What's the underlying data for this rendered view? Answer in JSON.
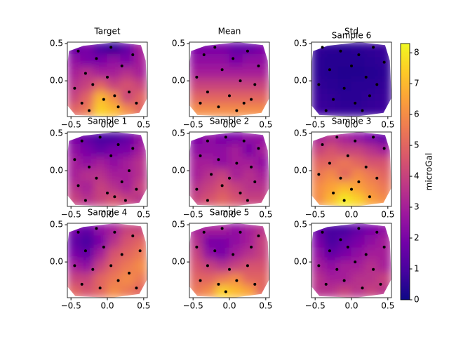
{
  "chart_data": {
    "type": "contour",
    "colormap": "plasma",
    "xlim": [
      -0.55,
      0.55
    ],
    "ylim": [
      -0.48,
      0.52
    ],
    "xticks": [
      {
        "value": -0.5,
        "label": "−0.5"
      },
      {
        "value": 0,
        "label": "0.0"
      },
      0.5
    ],
    "yticks": [
      {
        "value": 0,
        "label": "0.0"
      },
      0.5
    ],
    "panels": [
      {
        "titles": [
          "Target"
        ],
        "z": [
          [
            1.5,
            2,
            1,
            0.5,
            1.5,
            3
          ],
          [
            2.5,
            2,
            2,
            2.5,
            2,
            3
          ],
          [
            3,
            3.5,
            3,
            3,
            3.5,
            3
          ],
          [
            3.5,
            4,
            5,
            4,
            4.5,
            4
          ],
          [
            4,
            5,
            7,
            6,
            4,
            5
          ],
          [
            5,
            5.5,
            7.5,
            7,
            6,
            5
          ]
        ],
        "x": [
          -0.4,
          -0.3,
          -0.15,
          0.05,
          0.2,
          0.35,
          -0.45,
          -0.2,
          0.0,
          0.3,
          -0.35,
          -0.05,
          0.15,
          0.4,
          -0.25,
          0.1
        ],
        "y": [
          0.4,
          0.1,
          0.3,
          0.45,
          0.2,
          0.35,
          -0.1,
          -0.05,
          0.05,
          -0.15,
          -0.3,
          -0.25,
          -0.35,
          -0.3,
          -0.4,
          -0.2
        ]
      },
      {
        "titles": [
          "Mean"
        ],
        "z": [
          [
            2,
            2,
            2,
            1.5,
            1.5,
            2
          ],
          [
            2.5,
            2.5,
            2.5,
            2,
            2.5,
            2.5
          ],
          [
            3,
            3,
            3,
            3,
            3,
            3
          ],
          [
            4,
            4,
            4,
            4,
            4,
            4
          ],
          [
            5,
            5,
            5,
            5,
            5,
            5
          ],
          [
            6,
            6,
            6,
            6,
            6,
            6
          ]
        ],
        "x": [
          -0.35,
          -0.2,
          0.05,
          0.25,
          0.4,
          -0.45,
          -0.1,
          0.15,
          0.35,
          -0.3,
          0.0,
          0.2,
          -0.15,
          0.3,
          -0.4,
          0.1
        ],
        "y": [
          0.35,
          0.45,
          0.3,
          0.4,
          0.2,
          0.05,
          0.15,
          0.0,
          -0.05,
          -0.15,
          -0.2,
          -0.3,
          -0.35,
          -0.25,
          -0.3,
          -0.4
        ]
      },
      {
        "titles": [
          "Std",
          "Sample 6"
        ],
        "z": [
          [
            0.6,
            0.5,
            0.4,
            0.5,
            0.6,
            0.7
          ],
          [
            0.5,
            0.4,
            0.4,
            0.4,
            0.5,
            0.6
          ],
          [
            0.5,
            0.4,
            0.3,
            0.3,
            0.4,
            0.5
          ],
          [
            0.6,
            0.5,
            0.4,
            0.5,
            0.5,
            0.6
          ],
          [
            0.7,
            0.6,
            0.5,
            0.5,
            0.6,
            0.7
          ],
          [
            0.8,
            0.7,
            0.6,
            0.6,
            0.7,
            0.8
          ]
        ],
        "x": [
          -0.4,
          -0.15,
          0.1,
          0.3,
          0.45,
          -0.3,
          0.0,
          0.2,
          -0.45,
          -0.1,
          0.35,
          -0.25,
          0.05,
          0.25,
          -0.35,
          0.15
        ],
        "y": [
          0.45,
          0.4,
          0.35,
          0.45,
          0.25,
          0.15,
          0.2,
          0.05,
          -0.05,
          -0.1,
          -0.05,
          -0.25,
          -0.3,
          -0.2,
          -0.4,
          -0.4
        ]
      },
      {
        "titles": [
          "Sample 1"
        ],
        "z": [
          [
            2,
            1.5,
            1,
            1,
            1.5,
            2.5
          ],
          [
            2.5,
            2,
            1.5,
            2,
            2,
            3
          ],
          [
            3,
            2.5,
            3,
            2.5,
            3,
            3.5
          ],
          [
            3,
            3.5,
            3.5,
            3,
            3,
            3.5
          ],
          [
            3.5,
            3,
            4,
            3.5,
            3,
            4
          ],
          [
            4,
            3.5,
            4,
            4.5,
            4,
            3.5
          ]
        ],
        "x": [
          -0.35,
          -0.1,
          0.15,
          0.35,
          -0.45,
          -0.25,
          0.05,
          0.3,
          -0.15,
          0.2,
          -0.4,
          0.0,
          0.4,
          -0.3,
          0.1,
          0.25
        ],
        "y": [
          0.4,
          0.45,
          0.35,
          0.3,
          0.15,
          0.05,
          0.2,
          0.0,
          -0.1,
          -0.15,
          -0.2,
          -0.3,
          -0.25,
          -0.4,
          -0.35,
          -0.4
        ]
      },
      {
        "titles": [
          "Sample 2"
        ],
        "z": [
          [
            2,
            2.5,
            2,
            2,
            2.5,
            2.5
          ],
          [
            2.5,
            2.5,
            2.5,
            3,
            2,
            3
          ],
          [
            3,
            3,
            2.5,
            3,
            3,
            2.5
          ],
          [
            3,
            3.5,
            4,
            3,
            3.5,
            3
          ],
          [
            3.5,
            4,
            4.5,
            4,
            3.5,
            3.5
          ],
          [
            4,
            4.5,
            5,
            4.5,
            4,
            4
          ]
        ],
        "x": [
          -0.3,
          -0.05,
          0.2,
          0.4,
          -0.4,
          -0.15,
          0.1,
          0.3,
          -0.25,
          0.0,
          0.35,
          -0.45,
          -0.1,
          0.15,
          -0.3,
          0.25
        ],
        "y": [
          0.4,
          0.45,
          0.4,
          0.3,
          0.2,
          0.15,
          0.1,
          0.05,
          -0.05,
          -0.1,
          -0.15,
          -0.25,
          -0.2,
          -0.3,
          -0.4,
          -0.4
        ]
      },
      {
        "titles": [
          "Sample 3"
        ],
        "z": [
          [
            3,
            3.5,
            3,
            2.5,
            2,
            1.5
          ],
          [
            4,
            4.5,
            4,
            4,
            3.5,
            3
          ],
          [
            5,
            5,
            5.5,
            5,
            4.5,
            4.5
          ],
          [
            5.5,
            6,
            5,
            6,
            5.5,
            5
          ],
          [
            6,
            6.5,
            7,
            6.5,
            6,
            5.5
          ],
          [
            6,
            7,
            8,
            7.5,
            6.5,
            6
          ]
        ],
        "x": [
          -0.4,
          -0.2,
          0.05,
          0.3,
          0.45,
          -0.3,
          -0.05,
          0.2,
          -0.45,
          -0.15,
          0.1,
          0.35,
          -0.25,
          0.0,
          0.25,
          -0.1
        ],
        "y": [
          0.35,
          0.45,
          0.4,
          0.45,
          0.3,
          0.1,
          0.2,
          0.05,
          -0.05,
          -0.1,
          -0.15,
          -0.1,
          -0.3,
          -0.25,
          -0.35,
          -0.4
        ]
      },
      {
        "titles": [
          "Sample 4"
        ],
        "z": [
          [
            2,
            1.5,
            2.5,
            3,
            4,
            4
          ],
          [
            1.5,
            1,
            2,
            3.5,
            4.5,
            5
          ],
          [
            2,
            1.5,
            3,
            4.5,
            5,
            5.5
          ],
          [
            3,
            2.5,
            4,
            5,
            5.5,
            6
          ],
          [
            4,
            4,
            5,
            5.5,
            6,
            5.5
          ],
          [
            5,
            4.5,
            5,
            6,
            5.5,
            5
          ]
        ],
        "x": [
          -0.4,
          -0.15,
          0.1,
          0.35,
          -0.3,
          -0.05,
          0.2,
          0.45,
          -0.45,
          -0.2,
          0.05,
          0.3,
          -0.35,
          -0.1,
          0.15,
          0.4
        ],
        "y": [
          0.4,
          0.45,
          0.4,
          0.35,
          0.15,
          0.2,
          0.1,
          0.15,
          -0.05,
          -0.1,
          -0.05,
          -0.15,
          -0.3,
          -0.35,
          -0.25,
          -0.35
        ]
      },
      {
        "titles": [
          "Sample 5"
        ],
        "z": [
          [
            3,
            3,
            3,
            2.5,
            3,
            3.5
          ],
          [
            3.5,
            2,
            2,
            2.5,
            3,
            4
          ],
          [
            4,
            2.5,
            2,
            3,
            3.5,
            4
          ],
          [
            4.5,
            4,
            3.5,
            4,
            4.5,
            4.5
          ],
          [
            5,
            5,
            5.5,
            6,
            5,
            5
          ],
          [
            5.5,
            6,
            7.5,
            7,
            6.5,
            5
          ]
        ],
        "x": [
          -0.35,
          -0.1,
          0.15,
          0.4,
          -0.45,
          -0.2,
          0.05,
          0.3,
          -0.3,
          0.0,
          0.25,
          -0.4,
          -0.15,
          0.1,
          0.35,
          -0.05
        ],
        "y": [
          0.4,
          0.45,
          0.4,
          0.35,
          0.2,
          0.15,
          0.1,
          0.2,
          -0.05,
          -0.1,
          -0.05,
          -0.25,
          -0.3,
          -0.25,
          -0.3,
          -0.4
        ]
      },
      {
        "titles": [],
        "z": [
          [
            1.5,
            1,
            1,
            1.5,
            2,
            2.5
          ],
          [
            2,
            1,
            1.5,
            2,
            2.5,
            3
          ],
          [
            2.5,
            1.5,
            2,
            2.5,
            3,
            3
          ],
          [
            3,
            2.5,
            3,
            3,
            3.5,
            3
          ],
          [
            3.5,
            3,
            3,
            3.5,
            3.5,
            4
          ],
          [
            3.5,
            3.5,
            4,
            3.5,
            4,
            3.5
          ]
        ],
        "x": [
          -0.4,
          -0.15,
          0.1,
          0.35,
          -0.3,
          -0.05,
          0.2,
          0.45,
          -0.45,
          -0.2,
          0.05,
          0.3,
          -0.35,
          -0.1,
          0.15,
          0.4
        ],
        "y": [
          0.4,
          0.3,
          0.45,
          0.4,
          0.15,
          0.2,
          0.1,
          0.2,
          -0.05,
          -0.1,
          0.0,
          -0.1,
          -0.3,
          -0.25,
          -0.35,
          -0.3
        ]
      }
    ],
    "colorbar": {
      "label": "microGal",
      "ylim": [
        0,
        8.3
      ],
      "yticks": [
        0,
        1,
        2,
        3,
        4,
        5,
        6,
        7,
        8
      ]
    }
  }
}
